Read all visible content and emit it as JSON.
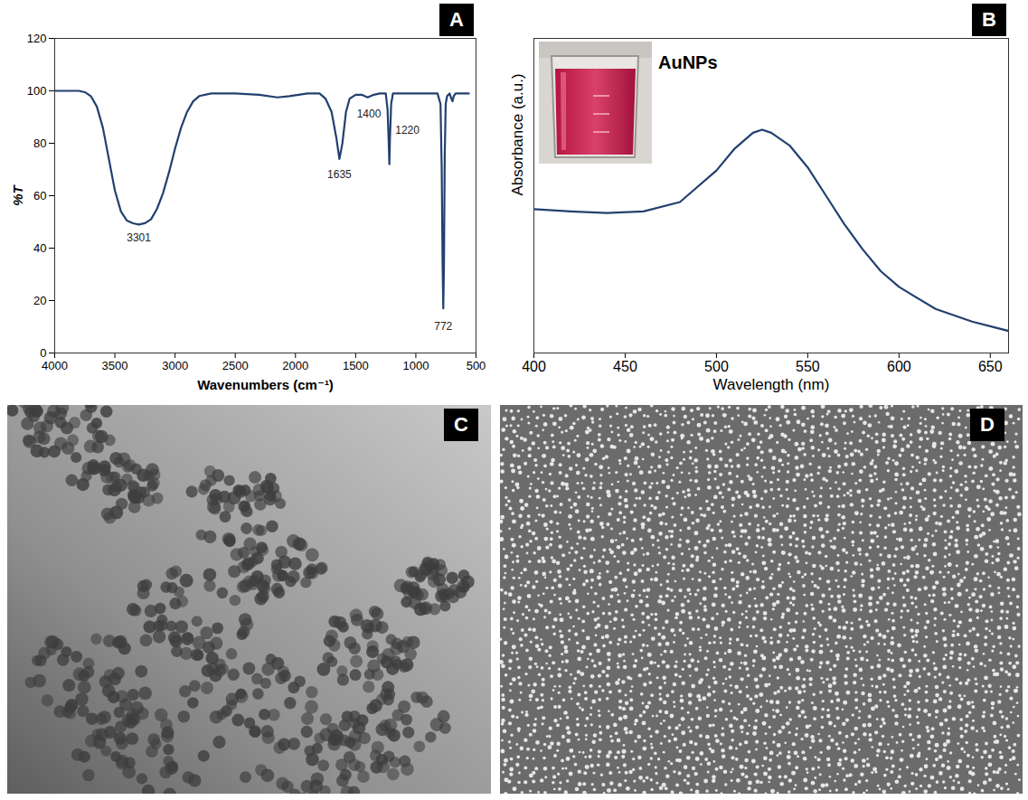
{
  "chart_data": [
    {
      "panel": "A",
      "type": "line",
      "x_label": "Wavenumbers (cm⁻¹)",
      "y_label": "%T",
      "color": "#22406f",
      "x": [
        4000,
        3800,
        3750,
        3700,
        3650,
        3600,
        3550,
        3500,
        3450,
        3400,
        3350,
        3301,
        3250,
        3200,
        3150,
        3100,
        3050,
        3000,
        2950,
        2900,
        2850,
        2800,
        2700,
        2500,
        2300,
        2150,
        2050,
        1900,
        1800,
        1750,
        1700,
        1660,
        1635,
        1610,
        1580,
        1550,
        1500,
        1450,
        1400,
        1350,
        1300,
        1250,
        1235,
        1225,
        1220,
        1215,
        1205,
        1190,
        1100,
        1000,
        900,
        820,
        795,
        785,
        778,
        772,
        766,
        760,
        752,
        740,
        720,
        705,
        695,
        685,
        670,
        600,
        560
      ],
      "values": [
        100,
        100,
        99.5,
        98,
        94,
        86,
        74,
        62,
        54,
        50.5,
        49.5,
        49,
        49.5,
        51,
        55,
        61,
        69,
        78,
        86,
        92,
        96,
        98,
        99,
        99,
        98.5,
        97.5,
        98,
        99,
        99,
        97,
        92,
        82,
        74,
        80,
        92,
        97,
        98.5,
        98.5,
        97.5,
        98.5,
        99,
        99,
        93,
        80,
        72,
        82,
        95,
        99,
        99,
        99,
        99,
        99,
        95,
        70,
        35,
        17,
        35,
        75,
        95,
        98,
        99,
        97,
        96,
        98,
        99,
        99,
        99
      ],
      "xlim": [
        4000,
        500
      ],
      "xticks": [
        4000,
        3500,
        3000,
        2500,
        2000,
        1500,
        1000,
        500
      ],
      "ylim": [
        0,
        120
      ],
      "yticks": [
        0,
        20,
        40,
        60,
        80,
        100,
        120
      ],
      "annotations": [
        {
          "text": "3301",
          "x": 3301,
          "y": 44
        },
        {
          "text": "1635",
          "x": 1635,
          "y": 68
        },
        {
          "text": "1400",
          "x": 1390,
          "y": 91
        },
        {
          "text": "1220",
          "x": 1070,
          "y": 85
        },
        {
          "text": "772",
          "x": 772,
          "y": 10
        }
      ]
    },
    {
      "panel": "B",
      "type": "line",
      "x_label": "Wavelength (nm)",
      "y_label": "Absorbance (a.u.)",
      "color": "#22406f",
      "inset_label": "AuNPs",
      "x": [
        400,
        420,
        440,
        460,
        480,
        500,
        510,
        520,
        525,
        530,
        540,
        550,
        560,
        570,
        580,
        590,
        600,
        620,
        640,
        660
      ],
      "values": [
        0.457,
        0.45,
        0.445,
        0.45,
        0.48,
        0.58,
        0.65,
        0.7,
        0.71,
        0.7,
        0.66,
        0.59,
        0.5,
        0.41,
        0.33,
        0.26,
        0.21,
        0.14,
        0.1,
        0.07
      ],
      "xlim": [
        400,
        660
      ],
      "xticks": [
        400,
        450,
        500,
        550,
        600,
        650
      ],
      "ylim": [
        0,
        1
      ],
      "tick_labels": "x"
    }
  ],
  "images": [
    {
      "panel": "C"
    },
    {
      "panel": "D"
    }
  ]
}
